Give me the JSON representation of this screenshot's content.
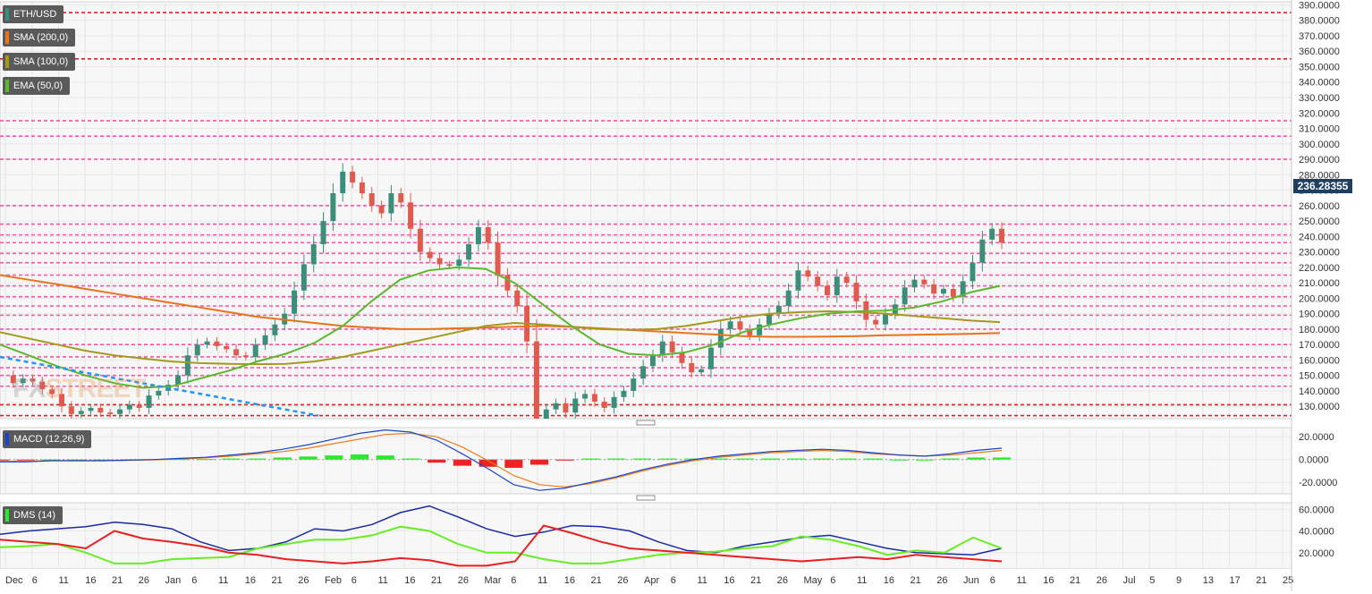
{
  "indicators": {
    "main": "ETH/USD",
    "sma200": "SMA (200,0)",
    "sma100": "SMA (100,0)",
    "ema50": "EMA (50,0)",
    "macd": "MACD (12,26,9)",
    "dms": "DMS (14)"
  },
  "watermark": {
    "left": "FX",
    "right": "STREET"
  },
  "current_price": "236.28355",
  "colors": {
    "up": "#3b8f7a",
    "down": "#e05a4e",
    "sma200": "#e8731f",
    "sma100": "#a39a1e",
    "ema50": "#5cb82e",
    "trendline": "#2196f3",
    "level_red": "#e02020",
    "level_pink": "#ff4fa8",
    "macd_blue": "#1a44c8",
    "macd_orange": "#f07a1a",
    "hist_pos": "#2ee82e",
    "hist_neg": "#ee2222",
    "dms_red": "#e82020",
    "dms_green": "#66ee22",
    "dms_blue": "#1a2aa0",
    "price_tag": "#1f3f5f"
  },
  "chart_data": [
    {
      "type": "candlestick",
      "title": "ETH/USD",
      "ylim": [
        122,
        392
      ],
      "yticks": [
        "130.0000",
        "140.0000",
        "150.0000",
        "160.0000",
        "170.0000",
        "180.0000",
        "190.0000",
        "200.0000",
        "210.0000",
        "220.0000",
        "230.0000",
        "240.0000",
        "250.0000",
        "260.0000",
        "270.0000",
        "280.0000",
        "290.0000",
        "300.0000",
        "310.0000",
        "320.0000",
        "330.0000",
        "340.0000",
        "350.0000",
        "360.0000",
        "370.0000",
        "380.0000",
        "390.0000"
      ],
      "x_labels": [
        "Dec",
        "6",
        "11",
        "16",
        "21",
        "26",
        "Jan",
        "6",
        "11",
        "16",
        "21",
        "26",
        "Feb",
        "6",
        "11",
        "16",
        "21",
        "26",
        "Mar",
        "6",
        "11",
        "16",
        "21",
        "26",
        "Apr",
        "6",
        "11",
        "16",
        "21",
        "26",
        "May",
        "6",
        "11",
        "16",
        "21",
        "26",
        "Jun",
        "6",
        "11",
        "16",
        "21",
        "26",
        "Jul",
        "5",
        "9",
        "13",
        "17",
        "21",
        "25"
      ],
      "levels_red": [
        385,
        355,
        131,
        124
      ],
      "levels_pink": [
        315,
        305,
        290,
        260,
        248,
        241,
        236,
        229,
        223,
        215,
        208,
        201,
        195,
        189,
        180,
        170,
        162,
        155,
        150,
        143
      ],
      "price_ticks": [
        150,
        145,
        148,
        146,
        141,
        138,
        130,
        125,
        127,
        129,
        126,
        125,
        128,
        131,
        129,
        137,
        140,
        144,
        150,
        163,
        170,
        172,
        169,
        167,
        163,
        162,
        170,
        176,
        183,
        190,
        205,
        222,
        235,
        250,
        268,
        282,
        275,
        268,
        260,
        255,
        268,
        262,
        245,
        230,
        226,
        222,
        221,
        225,
        235,
        246,
        236,
        215,
        205,
        195,
        172,
        122,
        128,
        132,
        126,
        135,
        138,
        133,
        129,
        136,
        140,
        148,
        156,
        163,
        172,
        165,
        158,
        152,
        154,
        168,
        180,
        185,
        180,
        176,
        183,
        190,
        195,
        205,
        218,
        214,
        208,
        202,
        214,
        210,
        198,
        186,
        183,
        190,
        196,
        207,
        212,
        209,
        203,
        206,
        201,
        211,
        223,
        238,
        245,
        236
      ],
      "sma200": [
        215,
        212,
        209,
        206,
        203,
        200,
        197,
        194,
        191,
        188,
        186,
        184,
        182,
        181,
        180,
        180,
        180.5,
        181,
        181.5,
        182,
        181.5,
        180.5,
        179.5,
        178.5,
        177.5,
        176.5,
        175.5,
        175,
        175,
        175.2,
        175.5,
        176,
        176.3,
        176.6,
        177,
        177.5
      ],
      "sma100": [
        178,
        174,
        170,
        166,
        163,
        161,
        159,
        158,
        157.5,
        157.3,
        157.5,
        159,
        162,
        166,
        170,
        174,
        178,
        182,
        184,
        183,
        181.5,
        180,
        179.5,
        180,
        182,
        185,
        188,
        190,
        191,
        191.5,
        191,
        190,
        188.5,
        187,
        185.5,
        184.5
      ],
      "ema50": [
        170,
        163,
        156,
        150,
        145,
        142,
        143,
        148,
        153,
        159,
        164,
        171,
        182,
        198,
        212,
        218,
        220,
        219,
        210,
        196,
        182,
        170,
        164,
        163,
        165,
        170,
        178,
        183,
        187,
        190,
        191.5,
        192,
        194,
        198,
        204,
        208
      ],
      "trendline_start": 162,
      "trendline_end": 124
    },
    {
      "type": "macd",
      "title": "MACD (12,26,9)",
      "ylim": [
        -30,
        28
      ],
      "yticks": [
        "20.0000",
        "0.0000",
        "-20.0000"
      ],
      "macd": [
        -2,
        -2,
        -1,
        -1,
        -1,
        -0.5,
        0,
        1,
        2,
        4,
        6,
        9,
        13,
        18,
        23,
        26,
        24,
        17,
        5,
        -8,
        -22,
        -27,
        -25,
        -20,
        -15,
        -9,
        -4,
        0,
        3,
        5,
        7,
        8,
        9,
        8,
        6,
        4,
        3,
        5,
        8,
        10
      ],
      "signal": [
        -1.5,
        -1.5,
        -1,
        -1,
        -1,
        -0.6,
        -0.2,
        0.5,
        1.5,
        3,
        5,
        7,
        10,
        14,
        18,
        22,
        23,
        20,
        11,
        -1,
        -14,
        -22,
        -24,
        -21,
        -16,
        -10,
        -5,
        -1,
        2,
        4,
        6,
        7,
        8,
        7,
        5,
        4,
        3,
        4,
        6,
        8
      ]
    },
    {
      "type": "dms",
      "title": "DMS (14)",
      "ylim": [
        5,
        66
      ],
      "yticks": [
        "60.0000",
        "40.0000",
        "20.0000"
      ],
      "di_minus": [
        32,
        30,
        28,
        24,
        40,
        33,
        30,
        26,
        20,
        18,
        14,
        12,
        10,
        12,
        15,
        13,
        8,
        8,
        12,
        45,
        38,
        30,
        24,
        22,
        20,
        18,
        16,
        14,
        12,
        14,
        16,
        14,
        18,
        16,
        14,
        12
      ],
      "di_plus": [
        25,
        26,
        28,
        20,
        10,
        10,
        14,
        15,
        16,
        24,
        28,
        32,
        32,
        36,
        44,
        40,
        28,
        20,
        20,
        14,
        10,
        10,
        14,
        18,
        20,
        21,
        24,
        26,
        35,
        32,
        26,
        18,
        22,
        20,
        34,
        24
      ],
      "adx": [
        37,
        40,
        42,
        44,
        48,
        46,
        42,
        30,
        22,
        24,
        30,
        42,
        40,
        46,
        57,
        63,
        53,
        42,
        35,
        39,
        45,
        44,
        40,
        30,
        22,
        20,
        26,
        30,
        34,
        36,
        30,
        24,
        20,
        19,
        18,
        24
      ]
    }
  ]
}
